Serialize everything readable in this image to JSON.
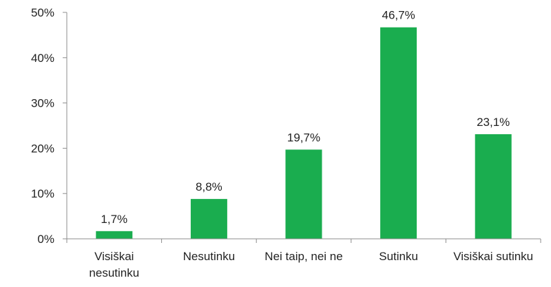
{
  "chart_data": {
    "type": "bar",
    "categories": [
      [
        "Visiškai",
        "nesutinku"
      ],
      [
        "Nesutinku"
      ],
      [
        "Nei taip, nei ne"
      ],
      [
        "Sutinku"
      ],
      [
        "Visiškai sutinku"
      ]
    ],
    "values": [
      1.7,
      8.8,
      19.7,
      46.7,
      23.1
    ],
    "data_labels": [
      "1,7%",
      "8,8%",
      "19,7%",
      "46,7%",
      "23,1%"
    ],
    "y_ticks": [
      "0%",
      "10%",
      "20%",
      "30%",
      "40%",
      "50%"
    ],
    "ylim": [
      0,
      50
    ],
    "grid": false,
    "legend": "none",
    "bar_color": "#1aad4f",
    "title": "",
    "xlabel": "",
    "ylabel": ""
  }
}
